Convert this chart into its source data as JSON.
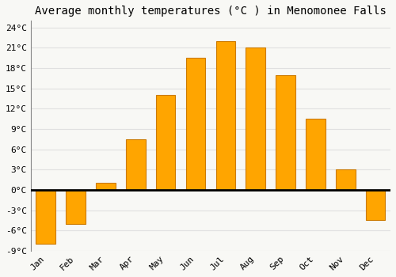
{
  "title": "Average monthly temperatures (°C ) in Menomonee Falls",
  "months": [
    "Jan",
    "Feb",
    "Mar",
    "Apr",
    "May",
    "Jun",
    "Jul",
    "Aug",
    "Sep",
    "Oct",
    "Nov",
    "Dec"
  ],
  "values": [
    -8.0,
    -5.0,
    1.0,
    7.5,
    14.0,
    19.5,
    22.0,
    21.0,
    17.0,
    10.5,
    3.0,
    -4.5
  ],
  "bar_color": "#FFA500",
  "bar_edge_color": "#CC7A00",
  "background_color": "#F8F8F5",
  "plot_bg_color": "#F8F8F5",
  "grid_color": "#E0E0E0",
  "ylim": [
    -9,
    25
  ],
  "yticks": [
    -9,
    -6,
    -3,
    0,
    3,
    6,
    9,
    12,
    15,
    18,
    21,
    24
  ],
  "title_fontsize": 10,
  "bar_width": 0.65
}
